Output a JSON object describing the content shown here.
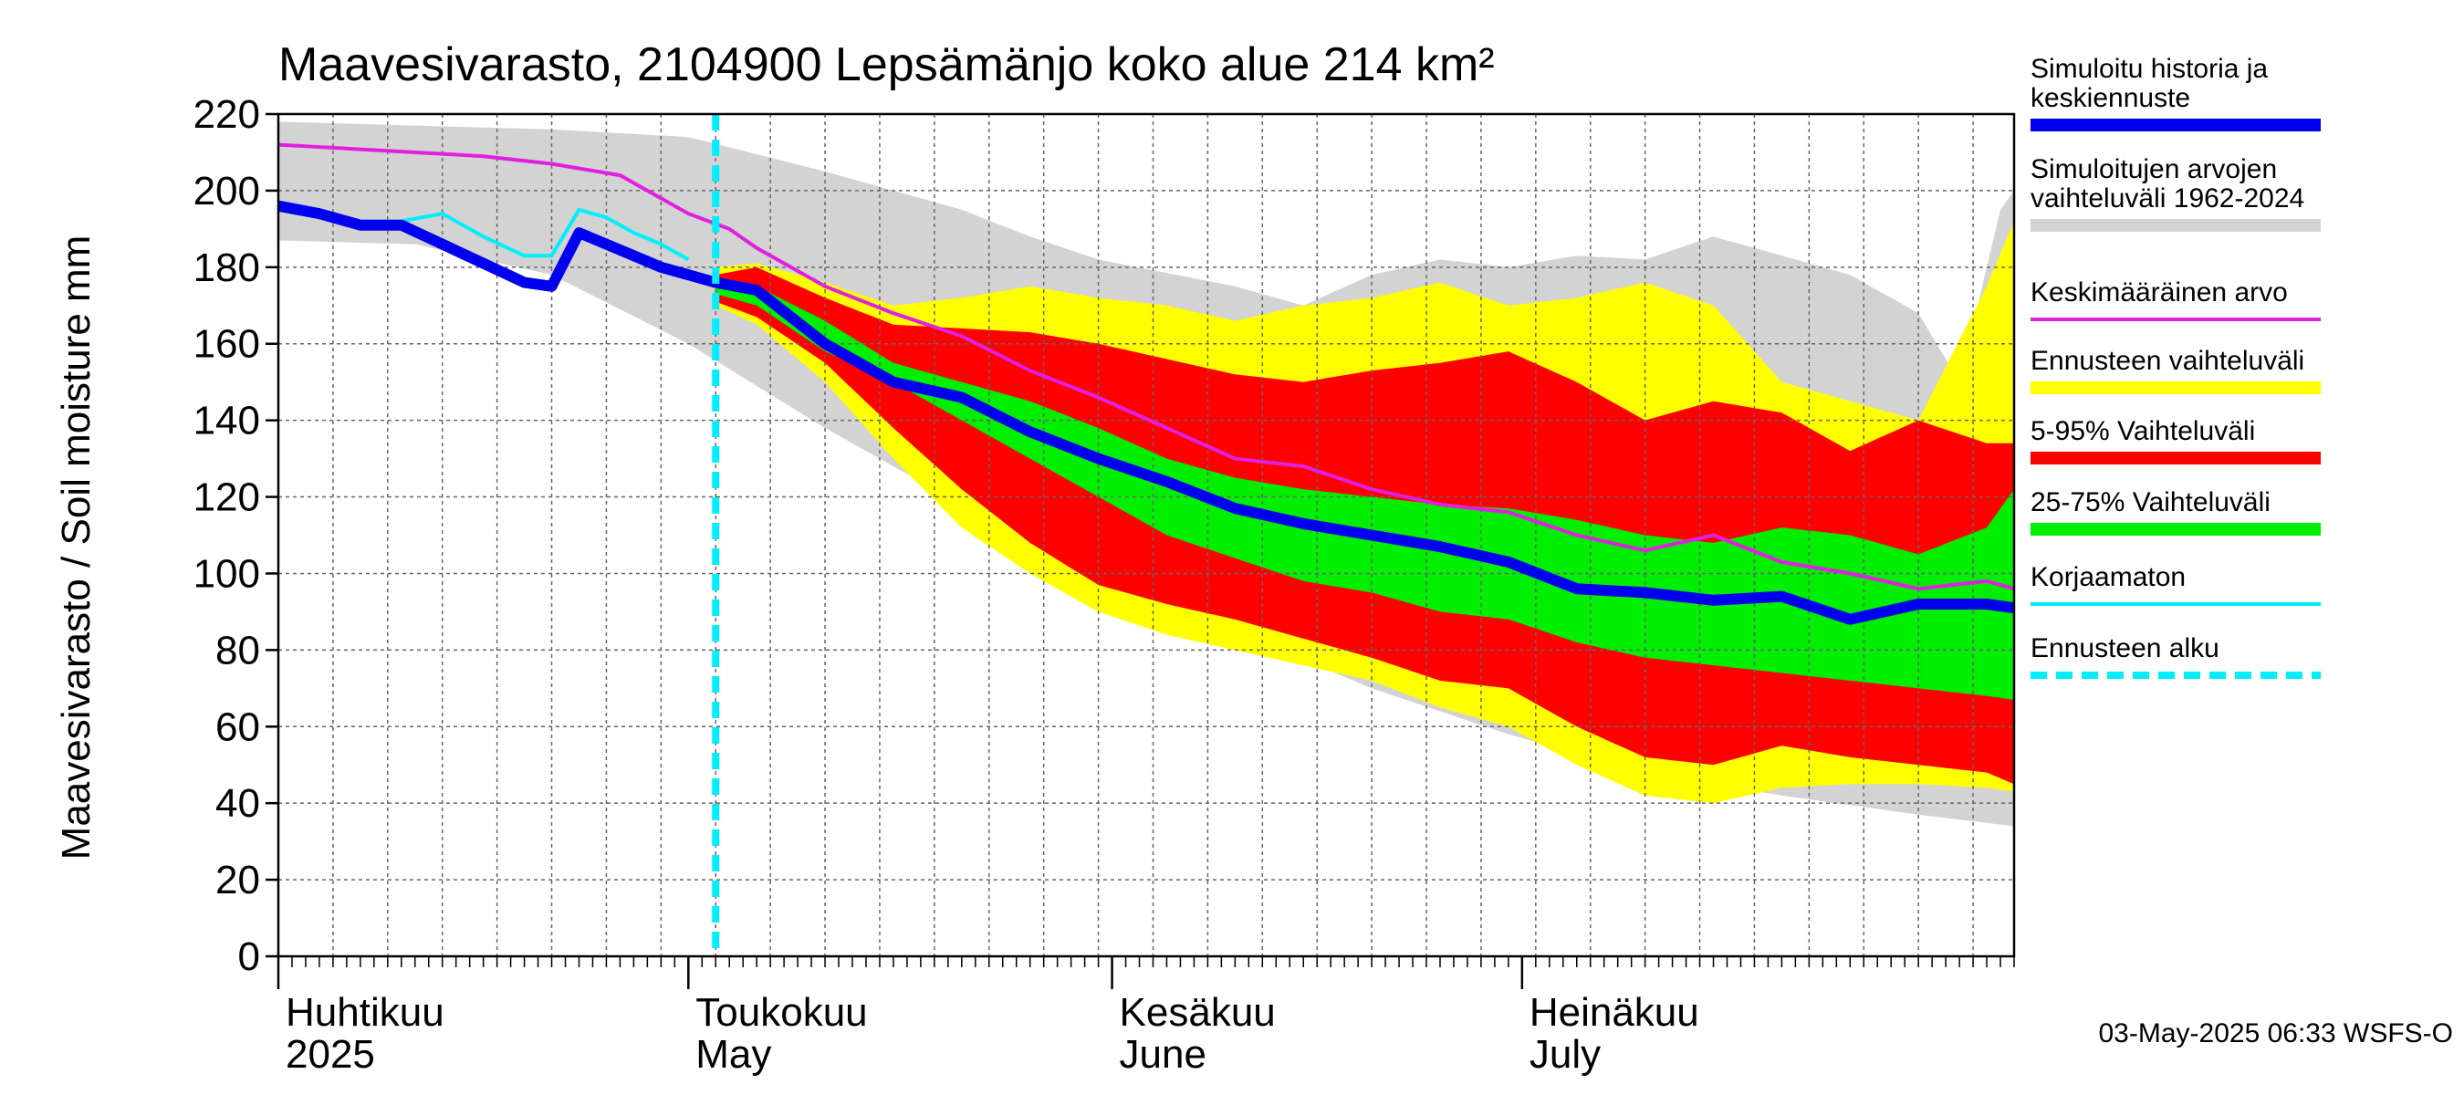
{
  "chart_data": {
    "type": "area",
    "title": "Maavesivarasto, 2104900 Lepsämänjo koko alue 214 km²",
    "ylabel": "Maavesivarasto / Soil moisture   mm",
    "xlabel": "",
    "ylim": [
      0,
      220
    ],
    "y_ticks": [
      0,
      20,
      40,
      60,
      80,
      100,
      120,
      140,
      160,
      180,
      200,
      220
    ],
    "x_range_days": [
      0,
      127
    ],
    "forecast_start_day": 32,
    "month_labels": [
      {
        "day": 0,
        "line1": "Huhtikuu",
        "line2": "2025"
      },
      {
        "day": 30,
        "line1": "Toukokuu",
        "line2": "May"
      },
      {
        "day": 61,
        "line1": "Kesäkuu",
        "line2": "June"
      },
      {
        "day": 91,
        "line1": "Heinäkuu",
        "line2": "July"
      }
    ],
    "legend": [
      {
        "key": "sim",
        "label": [
          "Simuloitu historia ja",
          "keskiennuste"
        ],
        "color": "#0000ee",
        "style": "thick"
      },
      {
        "key": "range",
        "label": [
          "Simuloitujen arvojen",
          "vaihteluväli 1962-2024"
        ],
        "color": "#d3d3d3",
        "style": "thick"
      },
      {
        "key": "mean",
        "label": [
          "Keskimääräinen arvo"
        ],
        "color": "#e020e0",
        "style": "thin"
      },
      {
        "key": "fc_range",
        "label": [
          "Ennusteen vaihteluväli"
        ],
        "color": "#ffff00",
        "style": "thick"
      },
      {
        "key": "p5_95",
        "label": [
          "5-95% Vaihteluväli"
        ],
        "color": "#ff0000",
        "style": "thick"
      },
      {
        "key": "p25_75",
        "label": [
          "25-75% Vaihteluväli"
        ],
        "color": "#00ee00",
        "style": "thick"
      },
      {
        "key": "raw",
        "label": [
          "Korjaamaton"
        ],
        "color": "#00eeff",
        "style": "thin"
      },
      {
        "key": "fc_start",
        "label": [
          "Ennusteen alku"
        ],
        "color": "#00eeff",
        "style": "dashed"
      }
    ],
    "series": {
      "hist_range_upper": {
        "x": [
          0,
          10,
          20,
          30,
          40,
          50,
          55,
          60,
          70,
          75,
          80,
          85,
          90,
          95,
          100,
          105,
          110,
          115,
          120,
          123,
          126,
          127
        ],
        "y": [
          218,
          217,
          216,
          214,
          205,
          195,
          188,
          182,
          175,
          170,
          178,
          182,
          180,
          183,
          182,
          188,
          183,
          178,
          168,
          150,
          195,
          200
        ]
      },
      "hist_range_lower": {
        "x": [
          0,
          10,
          20,
          30,
          40,
          50,
          60,
          70,
          80,
          90,
          100,
          110,
          120,
          127
        ],
        "y": [
          187,
          186,
          178,
          160,
          138,
          118,
          100,
          85,
          70,
          58,
          48,
          42,
          37,
          34
        ]
      },
      "fc_upper": {
        "x": [
          32,
          35,
          40,
          45,
          50,
          55,
          60,
          65,
          70,
          75,
          80,
          85,
          90,
          95,
          100,
          105,
          110,
          115,
          120,
          125,
          127
        ],
        "y": [
          180,
          181,
          176,
          170,
          172,
          175,
          172,
          170,
          166,
          170,
          172,
          176,
          170,
          172,
          176,
          170,
          150,
          145,
          140,
          175,
          192
        ]
      },
      "fc_lower": {
        "x": [
          32,
          35,
          40,
          45,
          50,
          55,
          60,
          65,
          70,
          75,
          80,
          85,
          90,
          95,
          100,
          105,
          110,
          115,
          120,
          125,
          127
        ],
        "y": [
          170,
          165,
          150,
          130,
          112,
          100,
          90,
          84,
          80,
          76,
          72,
          65,
          60,
          50,
          42,
          40,
          44,
          45,
          45,
          44,
          43
        ]
      },
      "p95": {
        "x": [
          32,
          35,
          40,
          45,
          50,
          55,
          60,
          65,
          70,
          75,
          80,
          85,
          90,
          95,
          100,
          105,
          110,
          115,
          120,
          125,
          127
        ],
        "y": [
          178,
          180,
          172,
          165,
          164,
          163,
          160,
          156,
          152,
          150,
          153,
          155,
          158,
          150,
          140,
          145,
          142,
          132,
          140,
          134,
          134
        ]
      },
      "p5": {
        "x": [
          32,
          35,
          40,
          45,
          50,
          55,
          60,
          65,
          70,
          75,
          80,
          85,
          90,
          95,
          100,
          105,
          110,
          115,
          120,
          125,
          127
        ],
        "y": [
          171,
          167,
          155,
          138,
          122,
          108,
          97,
          92,
          88,
          83,
          78,
          72,
          70,
          60,
          52,
          50,
          55,
          52,
          50,
          48,
          45
        ]
      },
      "p75": {
        "x": [
          32,
          35,
          40,
          45,
          50,
          55,
          60,
          65,
          70,
          75,
          80,
          85,
          90,
          95,
          100,
          105,
          110,
          115,
          120,
          125,
          127
        ],
        "y": [
          176,
          175,
          166,
          155,
          150,
          145,
          138,
          130,
          125,
          122,
          120,
          118,
          117,
          114,
          110,
          108,
          112,
          110,
          105,
          112,
          122
        ]
      },
      "p25": {
        "x": [
          32,
          35,
          40,
          45,
          50,
          55,
          60,
          65,
          70,
          75,
          80,
          85,
          90,
          95,
          100,
          105,
          110,
          115,
          120,
          125,
          127
        ],
        "y": [
          173,
          170,
          158,
          150,
          140,
          130,
          120,
          110,
          104,
          98,
          95,
          90,
          88,
          82,
          78,
          76,
          74,
          72,
          70,
          68,
          67
        ]
      },
      "mean": {
        "x": [
          0,
          5,
          10,
          15,
          20,
          25,
          30,
          33,
          35,
          40,
          45,
          50,
          55,
          60,
          65,
          70,
          75,
          80,
          85,
          90,
          95,
          100,
          105,
          110,
          115,
          120,
          125,
          127
        ],
        "y": [
          212,
          211,
          210,
          209,
          207,
          204,
          194,
          190,
          185,
          175,
          168,
          162,
          153,
          146,
          138,
          130,
          128,
          122,
          118,
          116,
          110,
          106,
          110,
          103,
          100,
          96,
          98,
          96
        ]
      },
      "raw": {
        "x": [
          0,
          3,
          6,
          9,
          12,
          15,
          18,
          20,
          22,
          24,
          26,
          28,
          30
        ],
        "y": [
          195,
          193,
          192,
          192,
          194,
          188,
          183,
          183,
          195,
          193,
          189,
          186,
          182
        ]
      },
      "sim": {
        "x": [
          0,
          3,
          6,
          9,
          12,
          15,
          18,
          20,
          22,
          24,
          26,
          28,
          30,
          32,
          35,
          40,
          45,
          50,
          55,
          60,
          65,
          70,
          75,
          80,
          85,
          90,
          95,
          100,
          105,
          110,
          115,
          120,
          125,
          127
        ],
        "y": [
          196,
          194,
          191,
          191,
          186,
          181,
          176,
          175,
          189,
          186,
          183,
          180,
          178,
          176,
          174,
          160,
          150,
          146,
          137,
          130,
          124,
          117,
          113,
          110,
          107,
          103,
          96,
          95,
          93,
          94,
          88,
          92,
          92,
          91
        ]
      }
    },
    "footer": "03-May-2025 06:33 WSFS-O"
  }
}
